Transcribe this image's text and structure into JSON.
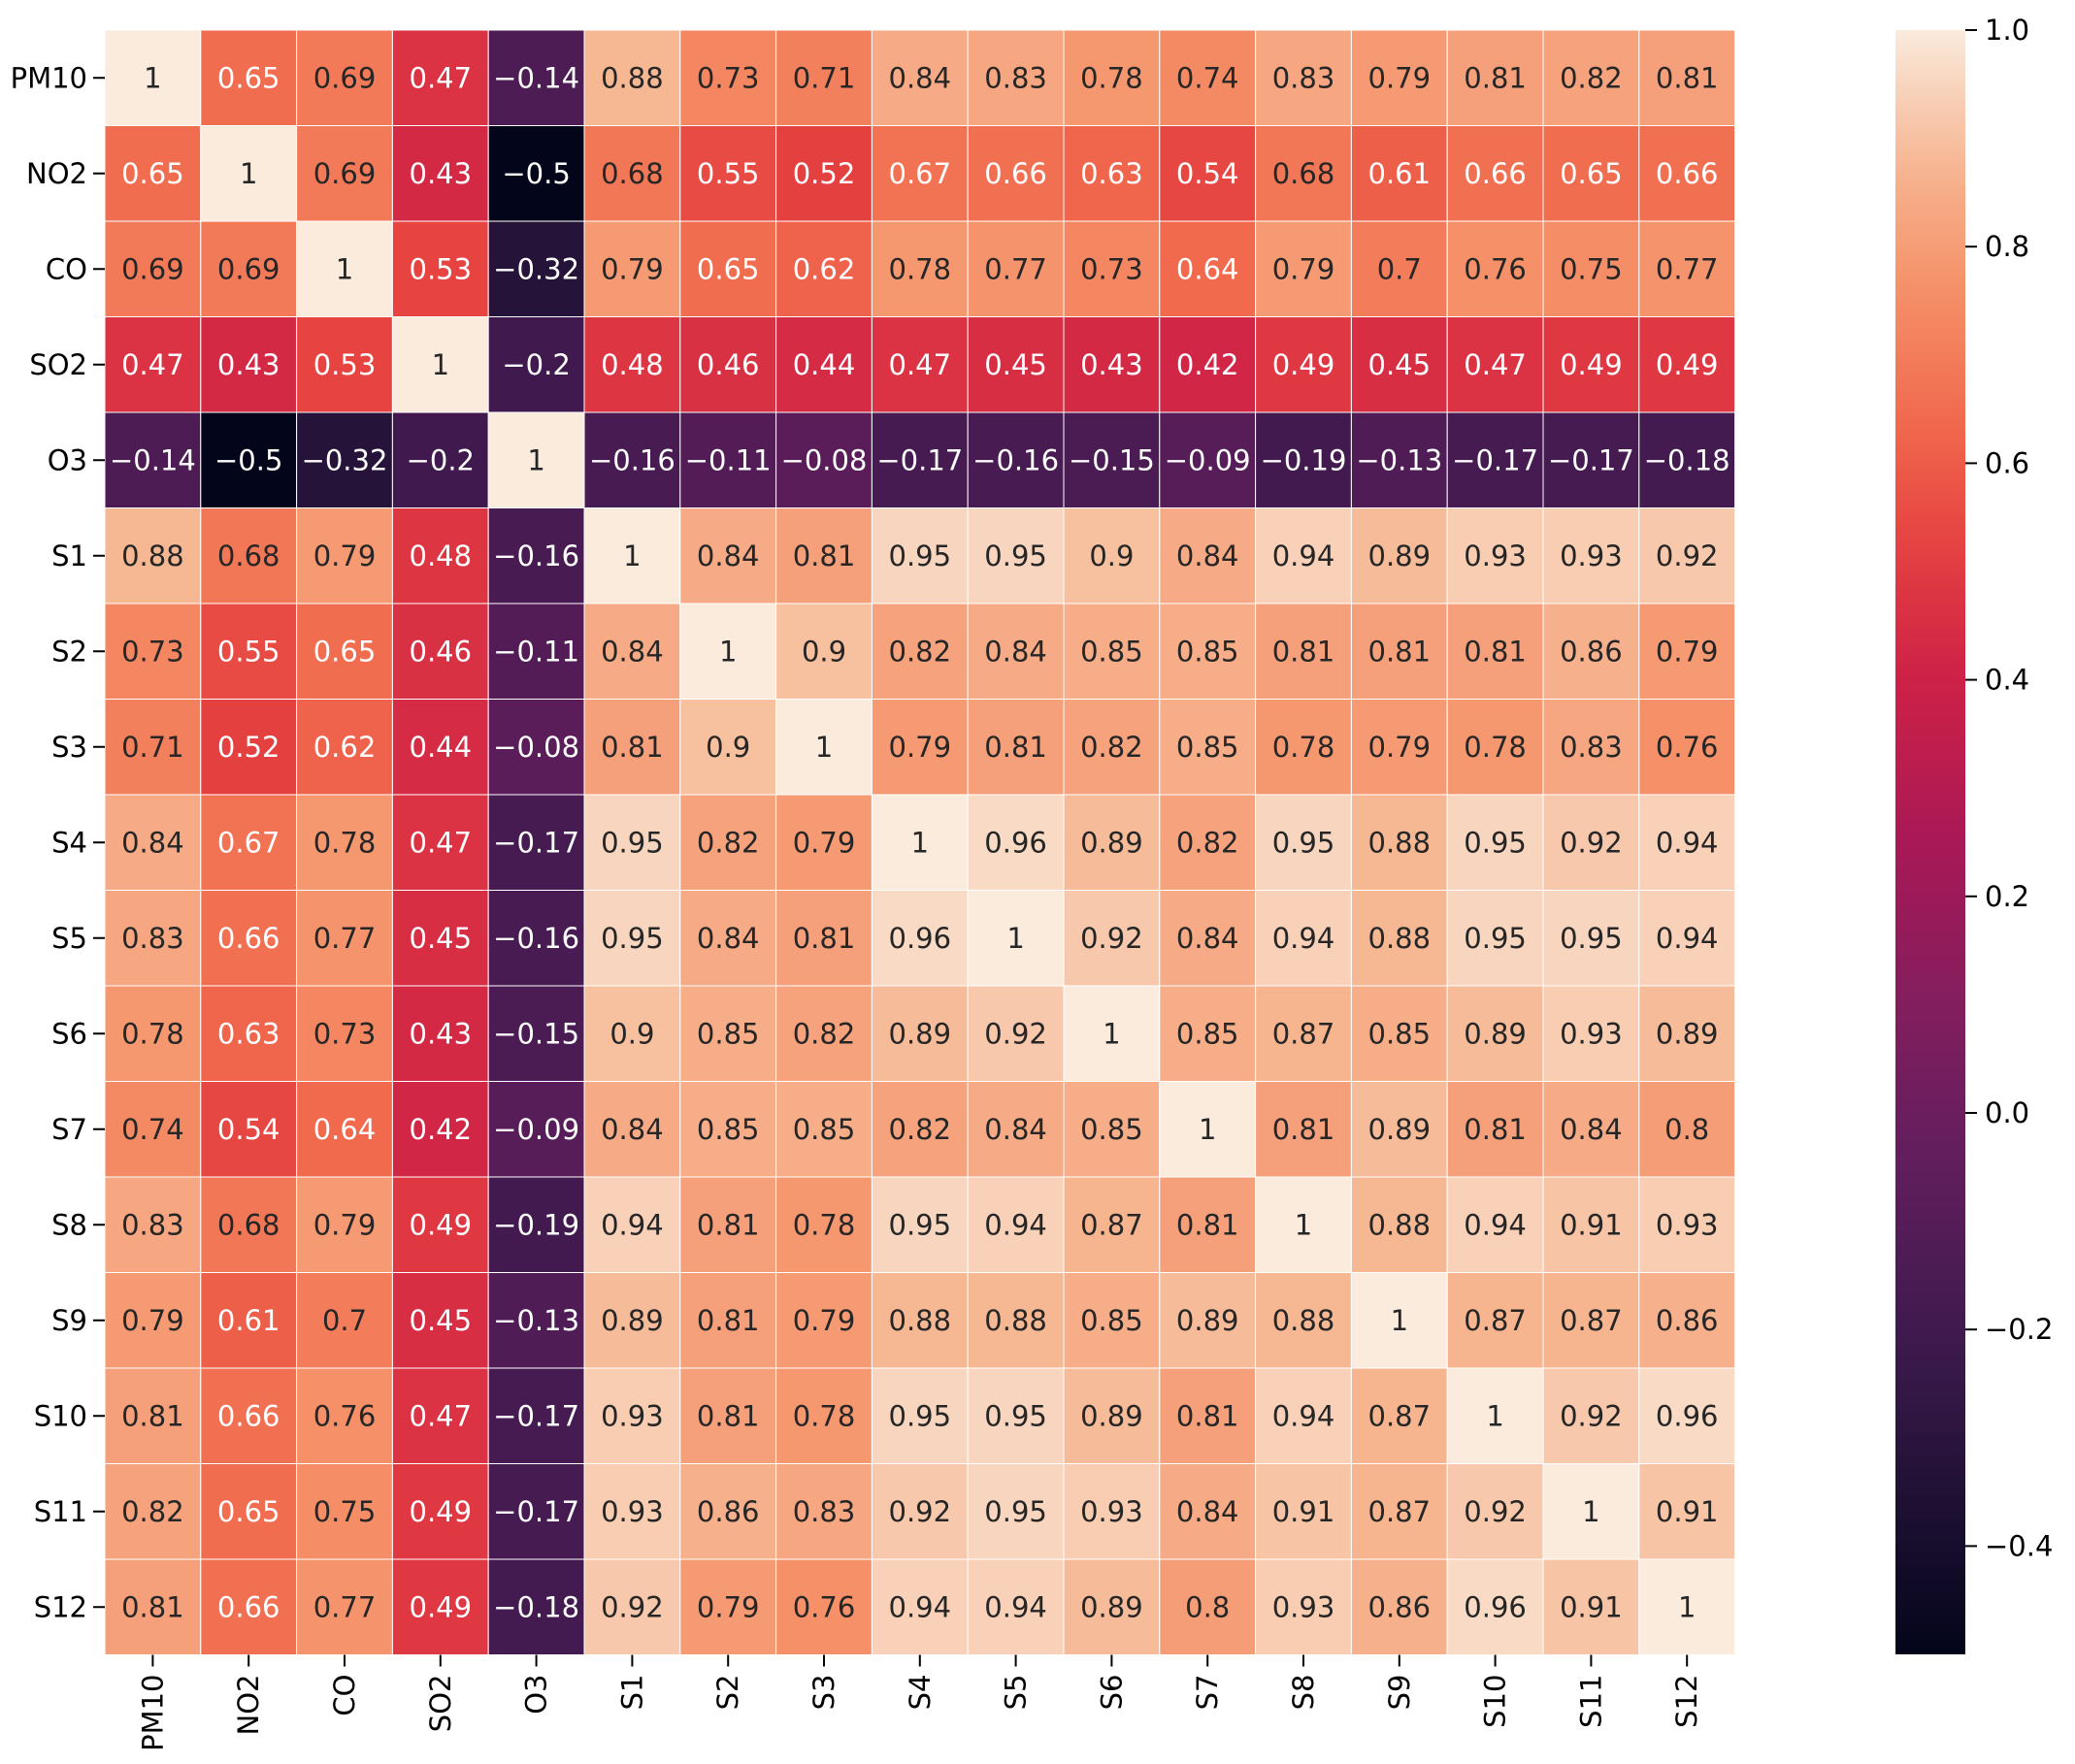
{
  "chart_data": {
    "type": "heatmap",
    "title": "",
    "xlabel": "",
    "ylabel": "",
    "row_labels": [
      "PM10",
      "NO2",
      "CO",
      "SO2",
      "O3",
      "S1",
      "S2",
      "S3",
      "S4",
      "S5",
      "S6",
      "S7",
      "S8",
      "S9",
      "S10",
      "S11",
      "S12"
    ],
    "col_labels": [
      "PM10",
      "NO2",
      "CO",
      "SO2",
      "O3",
      "S1",
      "S2",
      "S3",
      "S4",
      "S5",
      "S6",
      "S7",
      "S8",
      "S9",
      "S10",
      "S11",
      "S12"
    ],
    "values": [
      [
        1,
        0.65,
        0.69,
        0.47,
        -0.14,
        0.88,
        0.73,
        0.71,
        0.84,
        0.83,
        0.78,
        0.74,
        0.83,
        0.79,
        0.81,
        0.82,
        0.81
      ],
      [
        0.65,
        1,
        0.69,
        0.43,
        -0.5,
        0.68,
        0.55,
        0.52,
        0.67,
        0.66,
        0.63,
        0.54,
        0.68,
        0.61,
        0.66,
        0.65,
        0.66
      ],
      [
        0.69,
        0.69,
        1,
        0.53,
        -0.32,
        0.79,
        0.65,
        0.62,
        0.78,
        0.77,
        0.73,
        0.64,
        0.79,
        0.7,
        0.76,
        0.75,
        0.77
      ],
      [
        0.47,
        0.43,
        0.53,
        1,
        -0.2,
        0.48,
        0.46,
        0.44,
        0.47,
        0.45,
        0.43,
        0.42,
        0.49,
        0.45,
        0.47,
        0.49,
        0.49
      ],
      [
        -0.14,
        -0.5,
        -0.32,
        -0.2,
        1,
        -0.16,
        -0.11,
        -0.08,
        -0.17,
        -0.16,
        -0.15,
        -0.09,
        -0.19,
        -0.13,
        -0.17,
        -0.17,
        -0.18
      ],
      [
        0.88,
        0.68,
        0.79,
        0.48,
        -0.16,
        1,
        0.84,
        0.81,
        0.95,
        0.95,
        0.9,
        0.84,
        0.94,
        0.89,
        0.93,
        0.93,
        0.92
      ],
      [
        0.73,
        0.55,
        0.65,
        0.46,
        -0.11,
        0.84,
        1,
        0.9,
        0.82,
        0.84,
        0.85,
        0.85,
        0.81,
        0.81,
        0.81,
        0.86,
        0.79
      ],
      [
        0.71,
        0.52,
        0.62,
        0.44,
        -0.08,
        0.81,
        0.9,
        1,
        0.79,
        0.81,
        0.82,
        0.85,
        0.78,
        0.79,
        0.78,
        0.83,
        0.76
      ],
      [
        0.84,
        0.67,
        0.78,
        0.47,
        -0.17,
        0.95,
        0.82,
        0.79,
        1,
        0.96,
        0.89,
        0.82,
        0.95,
        0.88,
        0.95,
        0.92,
        0.94
      ],
      [
        0.83,
        0.66,
        0.77,
        0.45,
        -0.16,
        0.95,
        0.84,
        0.81,
        0.96,
        1,
        0.92,
        0.84,
        0.94,
        0.88,
        0.95,
        0.95,
        0.94
      ],
      [
        0.78,
        0.63,
        0.73,
        0.43,
        -0.15,
        0.9,
        0.85,
        0.82,
        0.89,
        0.92,
        1,
        0.85,
        0.87,
        0.85,
        0.89,
        0.93,
        0.89
      ],
      [
        0.74,
        0.54,
        0.64,
        0.42,
        -0.09,
        0.84,
        0.85,
        0.85,
        0.82,
        0.84,
        0.85,
        1,
        0.81,
        0.89,
        0.81,
        0.84,
        0.8
      ],
      [
        0.83,
        0.68,
        0.79,
        0.49,
        -0.19,
        0.94,
        0.81,
        0.78,
        0.95,
        0.94,
        0.87,
        0.81,
        1,
        0.88,
        0.94,
        0.91,
        0.93
      ],
      [
        0.79,
        0.61,
        0.7,
        0.45,
        -0.13,
        0.89,
        0.81,
        0.79,
        0.88,
        0.88,
        0.85,
        0.89,
        0.88,
        1,
        0.87,
        0.87,
        0.86
      ],
      [
        0.81,
        0.66,
        0.76,
        0.47,
        -0.17,
        0.93,
        0.81,
        0.78,
        0.95,
        0.95,
        0.89,
        0.81,
        0.94,
        0.87,
        1,
        0.92,
        0.96
      ],
      [
        0.82,
        0.65,
        0.75,
        0.49,
        -0.17,
        0.93,
        0.86,
        0.83,
        0.92,
        0.95,
        0.93,
        0.84,
        0.91,
        0.87,
        0.92,
        1,
        0.91
      ],
      [
        0.81,
        0.66,
        0.77,
        0.49,
        -0.18,
        0.92,
        0.79,
        0.76,
        0.94,
        0.94,
        0.89,
        0.8,
        0.93,
        0.86,
        0.96,
        0.91,
        1
      ]
    ],
    "color_range": [
      -0.5,
      1.0
    ],
    "colormap": "rocket",
    "colorbar_ticks": [
      "1.0",
      "0.8",
      "0.6",
      "0.4",
      "0.2",
      "0.0",
      "−0.2",
      "−0.4"
    ],
    "colorbar_tick_values": [
      1.0,
      0.8,
      0.6,
      0.4,
      0.2,
      0.0,
      -0.2,
      -0.4
    ],
    "colorbar_placement": "right",
    "grid_lines_color": "#ffffff",
    "annotations": "cell values shown"
  }
}
